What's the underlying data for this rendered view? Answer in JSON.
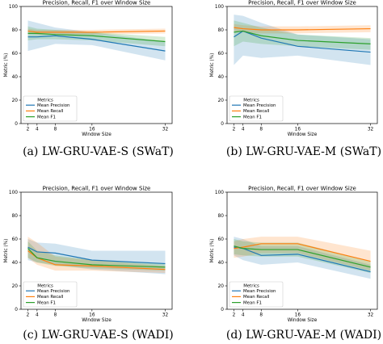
{
  "chart_data": [
    {
      "type": "line",
      "title": "Precision, Recall, F1 over Window Size",
      "xlabel": "Window Size",
      "ylabel": "Metric (%)",
      "caption": "(a) LW-GRU-VAE-S (SWaT)",
      "x": [
        2,
        4,
        8,
        16,
        32
      ],
      "xticks": [
        "2",
        "4",
        "8",
        "16",
        "32"
      ],
      "ylim": [
        0,
        100
      ],
      "yticks": [
        "0",
        "20",
        "40",
        "60",
        "80",
        "100"
      ],
      "legend_title": "Metrics",
      "legend_loc": "lower-left",
      "series": [
        {
          "name": "Mean Precision",
          "color": "#1f77b4",
          "values": [
            74,
            74,
            75,
            72,
            62
          ],
          "lower": [
            62,
            64,
            68,
            67,
            54
          ],
          "upper": [
            88,
            86,
            82,
            78,
            70
          ]
        },
        {
          "name": "Mean Recall",
          "color": "#ff7f0e",
          "values": [
            79,
            78,
            78,
            78,
            79
          ],
          "lower": [
            77,
            76,
            76,
            76,
            77
          ],
          "upper": [
            81,
            80,
            80,
            80,
            81
          ]
        },
        {
          "name": "Mean F1",
          "color": "#2ca02c",
          "values": [
            77,
            77,
            76,
            75,
            70
          ],
          "lower": [
            71,
            72,
            72,
            71,
            66
          ],
          "upper": [
            83,
            81,
            80,
            78,
            74
          ]
        }
      ]
    },
    {
      "type": "line",
      "title": "Precision, Recall, F1 over Window Size",
      "xlabel": "Window Size",
      "ylabel": "Metric (%)",
      "caption": "(b) LW-GRU-VAE-M (SWaT)",
      "x": [
        2,
        4,
        8,
        16,
        32
      ],
      "xticks": [
        "2",
        "4",
        "8",
        "16",
        "32"
      ],
      "ylim": [
        0,
        100
      ],
      "yticks": [
        "0",
        "20",
        "40",
        "60",
        "80",
        "100"
      ],
      "legend_title": "Metrics",
      "legend_loc": "lower-left",
      "series": [
        {
          "name": "Mean Precision",
          "color": "#1f77b4",
          "values": [
            74,
            79,
            73,
            66,
            61
          ],
          "lower": [
            50,
            58,
            56,
            58,
            50
          ],
          "upper": [
            93,
            92,
            86,
            76,
            72
          ]
        },
        {
          "name": "Mean Recall",
          "color": "#ff7f0e",
          "values": [
            82,
            81,
            80,
            80,
            81
          ],
          "lower": [
            79,
            78,
            77,
            77,
            78
          ],
          "upper": [
            85,
            84,
            83,
            83,
            84
          ]
        },
        {
          "name": "Mean F1",
          "color": "#2ca02c",
          "values": [
            78,
            79,
            75,
            71,
            68
          ],
          "lower": [
            66,
            70,
            68,
            66,
            63
          ],
          "upper": [
            88,
            86,
            82,
            76,
            73
          ]
        }
      ]
    },
    {
      "type": "line",
      "title": "Precision, Recall, F1 over Window Size",
      "xlabel": "Window Size",
      "ylabel": "Metric (%)",
      "caption": "(c) LW-GRU-VAE-S (WADI)",
      "x": [
        2,
        4,
        8,
        16,
        32
      ],
      "xticks": [
        "2",
        "4",
        "8",
        "16",
        "32"
      ],
      "ylim": [
        0,
        100
      ],
      "yticks": [
        "0",
        "20",
        "40",
        "60",
        "80",
        "100"
      ],
      "legend_title": "Metrics",
      "legend_loc": "lower-left",
      "series": [
        {
          "name": "Mean Precision",
          "color": "#1f77b4",
          "values": [
            53,
            49,
            48,
            42,
            39
          ],
          "lower": [
            42,
            40,
            38,
            34,
            30
          ],
          "upper": [
            60,
            57,
            56,
            50,
            50
          ]
        },
        {
          "name": "Mean Recall",
          "color": "#ff7f0e",
          "values": [
            50,
            44,
            38,
            37,
            34
          ],
          "lower": [
            44,
            38,
            33,
            33,
            31
          ],
          "upper": [
            62,
            57,
            45,
            42,
            37
          ]
        },
        {
          "name": "Mean F1",
          "color": "#2ca02c",
          "values": [
            52,
            44,
            41,
            38,
            36
          ],
          "lower": [
            44,
            40,
            37,
            35,
            33
          ],
          "upper": [
            58,
            50,
            46,
            42,
            39
          ]
        }
      ]
    },
    {
      "type": "line",
      "title": "Precision, Recall, F1 over Window Size",
      "xlabel": "Window Size",
      "ylabel": "Metric (%)",
      "caption": "(d) LW-GRU-VAE-M (WADI)",
      "x": [
        2,
        4,
        8,
        16,
        32
      ],
      "xticks": [
        "2",
        "4",
        "8",
        "16",
        "32"
      ],
      "ylim": [
        0,
        100
      ],
      "yticks": [
        "0",
        "20",
        "40",
        "60",
        "80",
        "100"
      ],
      "legend_title": "Metrics",
      "legend_loc": "lower-left",
      "series": [
        {
          "name": "Mean Precision",
          "color": "#1f77b4",
          "values": [
            53,
            52,
            46,
            47,
            32
          ],
          "lower": [
            46,
            42,
            38,
            40,
            26
          ],
          "upper": [
            62,
            60,
            54,
            54,
            38
          ]
        },
        {
          "name": "Mean Recall",
          "color": "#ff7f0e",
          "values": [
            52,
            53,
            56,
            56,
            41
          ],
          "lower": [
            44,
            45,
            48,
            48,
            33
          ],
          "upper": [
            58,
            60,
            62,
            62,
            50
          ]
        },
        {
          "name": "Mean F1",
          "color": "#2ca02c",
          "values": [
            54,
            52,
            51,
            51,
            36
          ],
          "lower": [
            47,
            46,
            45,
            45,
            31
          ],
          "upper": [
            60,
            58,
            57,
            57,
            41
          ]
        }
      ]
    }
  ]
}
